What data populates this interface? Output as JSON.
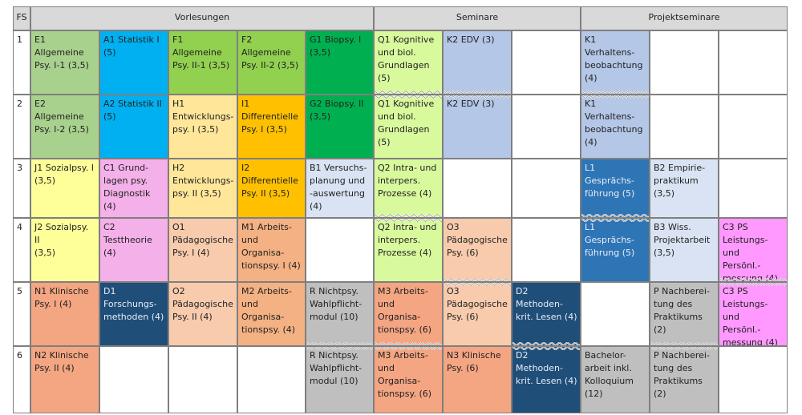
{
  "header": {
    "fs": "FS",
    "vorlesungen": "Vorlesungen",
    "seminare": "Seminare",
    "projektseminare": "Projektseminare"
  },
  "semesters": [
    "1",
    "2",
    "3",
    "4",
    "5",
    "6"
  ],
  "colors": {
    "light_green": "#a9d18e",
    "cyan": "#00b0f0",
    "lime": "#92d050",
    "green": "#00b050",
    "yellow_green": "#d9f99d",
    "periwinkle": "#b4c7e7",
    "light_orange": "#ffe699",
    "orange": "#ffc000",
    "yellow": "#ffff99",
    "pink": "#f4b0e8",
    "light_blue": "#dae3f3",
    "peach": "#f8cbad",
    "salmon": "#f4a582",
    "dark_blue": "#1f4e79",
    "grey": "#bfbfbf",
    "blue": "#2e75b6",
    "magenta": "#ff99ff",
    "header_grey": "#d9d9d9"
  },
  "cells": [
    {
      "id": "e1",
      "text": "E1 Allgemeine\nPsy. I-1 (3,5)",
      "color": "#a9d18e"
    },
    {
      "id": "a1",
      "text": "A1 Statistik I\n(5)",
      "color": "#00b0f0"
    },
    {
      "id": "f1",
      "text": "F1 Allgemeine\nPsy. II-1 (3,5)",
      "color": "#92d050"
    },
    {
      "id": "f2",
      "text": "F2 Allgemeine\nPsy. II-2 (3,5)",
      "color": "#92d050"
    },
    {
      "id": "g1",
      "text": "G1 Biopsy. I\n(3,5)",
      "color": "#00b050"
    },
    {
      "id": "q1a",
      "text": "Q1 Kognitive\nund biol.\nGrundlagen\n(5)",
      "color": "#d9f99d"
    },
    {
      "id": "k2a",
      "text": "K2 EDV (3)",
      "color": "#b4c7e7"
    },
    {
      "id": "k1a",
      "text": "K1\nVerhaltens-\nbeobachtung\n(4)",
      "color": "#b4c7e7"
    },
    {
      "id": "e2",
      "text": "E2 Allgemeine\nPsy. I-2 (3,5)",
      "color": "#a9d18e"
    },
    {
      "id": "a2",
      "text": "A2 Statistik II\n(5)",
      "color": "#00b0f0"
    },
    {
      "id": "h1",
      "text": "H1\nEntwicklungs-\npsy. I (3,5)",
      "color": "#ffe699"
    },
    {
      "id": "i1",
      "text": "I1\nDifferentielle\nPsy. I (3,5)",
      "color": "#ffc000"
    },
    {
      "id": "g2",
      "text": "G2 Biopsy. II\n(3,5)",
      "color": "#00b050"
    },
    {
      "id": "q1b",
      "text": "Q1 Kognitive\nund biol.\nGrundlagen\n(5)",
      "color": "#d9f99d"
    },
    {
      "id": "k2b",
      "text": "K2 EDV (3)",
      "color": "#b4c7e7"
    },
    {
      "id": "k1b",
      "text": "K1\nVerhaltens-\nbeobachtung\n(4)",
      "color": "#b4c7e7"
    },
    {
      "id": "j1",
      "text": "J1 Sozialpsy. I\n(3,5)",
      "color": "#ffff99"
    },
    {
      "id": "c1",
      "text": "C1 Grund-\nlagen psy.\nDiagnostik (4)",
      "color": "#f4b0e8"
    },
    {
      "id": "h2",
      "text": "H2\nEntwicklungs-\npsy. II (3,5)",
      "color": "#ffe699"
    },
    {
      "id": "i2",
      "text": "I2\nDifferentielle\nPsy. II (3,5)",
      "color": "#ffc000"
    },
    {
      "id": "b1",
      "text": "B1 Versuchs-\nplanung und\n-auswertung\n(4)",
      "color": "#dae3f3"
    },
    {
      "id": "q2a",
      "text": "Q2 Intra- und\ninterpers.\nProzesse (4)",
      "color": "#d9f99d"
    },
    {
      "id": "l1a",
      "text": "L1 Gesprächs-\nführung (5)",
      "color": "#2e75b6"
    },
    {
      "id": "b2",
      "text": "B2 Empirie-\npraktikum\n(3,5)",
      "color": "#dae3f3"
    },
    {
      "id": "j2",
      "text": "J2 Sozialpsy. II\n(3,5)",
      "color": "#ffff99"
    },
    {
      "id": "c2",
      "text": "C2\nTesttheorie\n(4)",
      "color": "#f4b0e8"
    },
    {
      "id": "o1",
      "text": "O1\nPädagogische\nPsy. I (4)",
      "color": "#f8cbad"
    },
    {
      "id": "m1",
      "text": "M1 Arbeits-\nund Organisa-\ntionspsy. I (4)",
      "color": "#f4b183"
    },
    {
      "id": "q2b",
      "text": "Q2 Intra- und\ninterpers.\nProzesse (4)",
      "color": "#d9f99d"
    },
    {
      "id": "o3a",
      "text": "O3\nPädagogische\nPsy. (6)",
      "color": "#f8cbad"
    },
    {
      "id": "l1b",
      "text": "L1 Gesprächs-\nführung (5)",
      "color": "#2e75b6"
    },
    {
      "id": "b3",
      "text": "B3 Wiss.\nProjektarbeit\n(3,5)",
      "color": "#dae3f3"
    },
    {
      "id": "c3a",
      "text": "C3 PS\nLeistungs- und\nPersönl.-\nmessung (4)",
      "color": "#ff99ff"
    },
    {
      "id": "n1",
      "text": "N1 Klinische\nPsy. I (4)",
      "color": "#f4a582"
    },
    {
      "id": "d1",
      "text": "D1\nForschungs-\nmethoden (4)",
      "color": "#1f4e79"
    },
    {
      "id": "o2",
      "text": "O2\nPädagogische\nPsy. II (4)",
      "color": "#f8cbad"
    },
    {
      "id": "m2",
      "text": "M2 Arbeits-\nund Organisa-\ntionspsy. (4)",
      "color": "#f4b183"
    },
    {
      "id": "ra",
      "text": "R Nichtpsy.\nWahlpflicht-\nmodul (10)",
      "color": "#bfbfbf"
    },
    {
      "id": "m3a",
      "text": "M3 Arbeits-\nund Organisa-\ntionspsy. (6)",
      "color": "#f4a582"
    },
    {
      "id": "o3b",
      "text": "O3\nPädagogische\nPsy. (6)",
      "color": "#f8cbad"
    },
    {
      "id": "d2a",
      "text": "D2\nMethoden-\nkrit. Lesen (4)",
      "color": "#1f4e79"
    },
    {
      "id": "pa",
      "text": "P Nachberei-\ntung des\nPraktikums (2)",
      "color": "#bfbfbf"
    },
    {
      "id": "c3b",
      "text": "C3 PS\nLeistungs- und\nPersönl.-\nmessung (4)",
      "color": "#ff99ff"
    },
    {
      "id": "n2",
      "text": "N2 Klinische\nPsy. II (4)",
      "color": "#f4a582"
    },
    {
      "id": "rb",
      "text": "R Nichtpsy.\nWahlpflicht-\nmodul (10)",
      "color": "#bfbfbf"
    },
    {
      "id": "m3b",
      "text": "M3 Arbeits-\nund Organisa-\ntionspsy. (6)",
      "color": "#f4a582"
    },
    {
      "id": "n3",
      "text": "N3 Klinische\nPsy. (6)",
      "color": "#f4a582"
    },
    {
      "id": "d2b",
      "text": "D2\nMethoden-\nkrit. Lesen (4)",
      "color": "#1f4e79"
    },
    {
      "id": "ba",
      "text": "Bachelor-\narbeit inkl.\nKolloquium\n(12)",
      "color": "#bfbfbf"
    },
    {
      "id": "pb",
      "text": "P Nachberei-\ntung des\nPraktikums (2)",
      "color": "#bfbfbf"
    }
  ]
}
